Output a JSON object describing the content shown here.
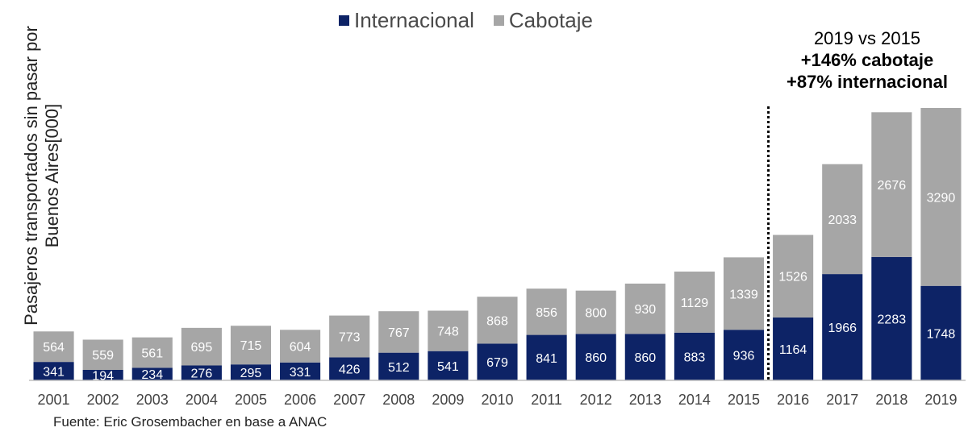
{
  "colors": {
    "internacional": "#0d2366",
    "cabotaje": "#a6a6a6",
    "axis": "#bfbfbf",
    "tick_text": "#444444"
  },
  "chart_data": {
    "type": "bar",
    "stacked": true,
    "categories": [
      "2001",
      "2002",
      "2003",
      "2004",
      "2005",
      "2006",
      "2007",
      "2008",
      "2009",
      "2010",
      "2011",
      "2012",
      "2013",
      "2014",
      "2015",
      "2016",
      "2017",
      "2018",
      "2019"
    ],
    "series": [
      {
        "name": "Internacional",
        "values": [
          341,
          194,
          234,
          276,
          295,
          331,
          426,
          512,
          541,
          679,
          841,
          860,
          860,
          883,
          936,
          1164,
          1966,
          2283,
          1748
        ]
      },
      {
        "name": "Cabotaje",
        "values": [
          564,
          559,
          561,
          695,
          715,
          604,
          773,
          767,
          748,
          868,
          856,
          800,
          930,
          1129,
          1339,
          1526,
          2033,
          2676,
          3290
        ]
      }
    ],
    "ylabel": "Pasajeros transportados sin pasar por Buenos Aires[000]",
    "ylim": [
      0,
      5500
    ],
    "grid": false,
    "legend_position": "top-center",
    "divider_after": "2015",
    "annotation": {
      "line1": "2019 vs 2015",
      "line2": "+146% cabotaje",
      "line3": "+87% internacional"
    }
  },
  "source": "Fuente: Eric Grosembacher en base a ANAC"
}
